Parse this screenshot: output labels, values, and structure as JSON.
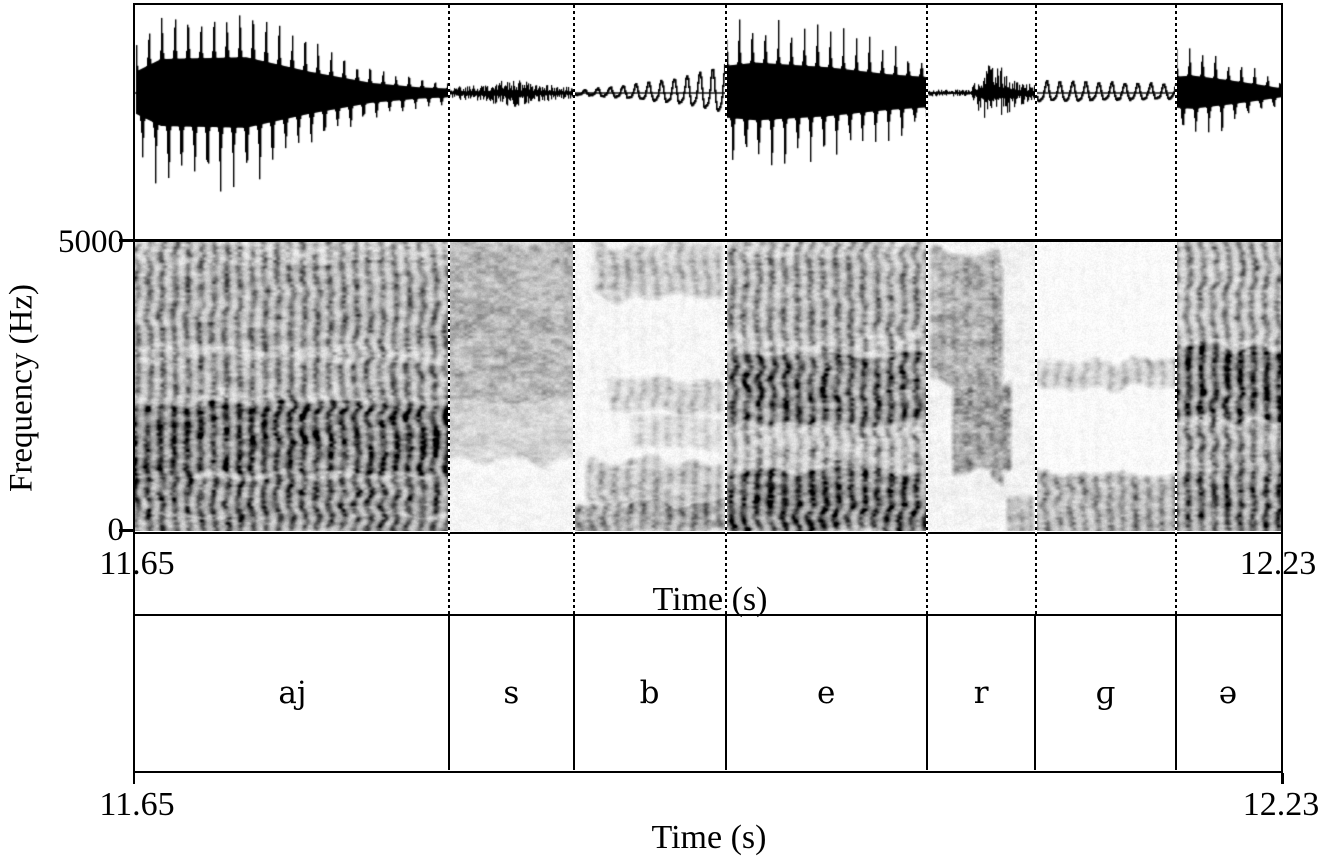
{
  "figure": {
    "freq_axis": {
      "title": "Frequency (Hz)",
      "max": "5000",
      "min": "0"
    },
    "upper_time_axis": {
      "left": "11.65",
      "right": "12.23",
      "title": "Time (s)"
    },
    "lower_time_axis": {
      "left": "11.65",
      "right": "12.23",
      "title": "Time (s)"
    }
  },
  "chart_data": {
    "type": "waveform+spectrogram+segmentation",
    "time_range_s": [
      11.65,
      12.23
    ],
    "frequency_range_hz": [
      0,
      5000
    ],
    "xlabel": "Time (s)",
    "ylabel": "Frequency (Hz)",
    "x_ticks": [
      "11.65",
      "12.23"
    ],
    "y_ticks": [
      "0",
      "5000"
    ],
    "grid": false,
    "panels": [
      "oscillogram",
      "grayscale spectrogram",
      "phone segmentation tier"
    ],
    "segmentation_tier": [
      {
        "label": "aj",
        "start_s": 11.65,
        "end_s": 11.809,
        "waveform": {
          "type": "pulses",
          "period": 13,
          "body": 0.42,
          "amp": 1.0,
          "asym": 1.08,
          "env": [
            [
              0,
              0.6
            ],
            [
              0.08,
              0.95
            ],
            [
              0.35,
              1.0
            ],
            [
              0.55,
              0.6
            ],
            [
              0.75,
              0.28
            ],
            [
              0.9,
              0.16
            ],
            [
              1,
              0.12
            ]
          ]
        },
        "spectrogram": {
          "base": 0.42,
          "striation": 0.5,
          "bands": [
            [
              0,
              260,
              0.72
            ],
            [
              300,
              900,
              0.75
            ],
            [
              1050,
              2200,
              0.9
            ],
            [
              2400,
              2950,
              0.55
            ],
            [
              3250,
              4650,
              0.55
            ],
            [
              0,
              5000,
              0.4,
              [
                0.8,
                0.85
              ]
            ]
          ]
        }
      },
      {
        "label": "s",
        "start_s": 11.809,
        "end_s": 11.872,
        "waveform": {
          "type": "noise",
          "amp": 1.0,
          "env": [
            [
              0,
              0.07
            ],
            [
              0.3,
              0.11
            ],
            [
              0.5,
              0.17
            ],
            [
              0.7,
              0.11
            ],
            [
              1,
              0.07
            ]
          ]
        },
        "spectrogram": {
          "base": 0.06,
          "striation": 0.0,
          "bands": [
            [
              2300,
              5000,
              0.42
            ],
            [
              1250,
              2300,
              0.25
            ]
          ]
        }
      },
      {
        "label": "b",
        "start_s": 11.872,
        "end_s": 11.949,
        "waveform": {
          "type": "sine",
          "period": 12.8,
          "amp": 1.0,
          "env": [
            [
              0,
              0.02
            ],
            [
              0.35,
              0.07
            ],
            [
              0.7,
              0.14
            ],
            [
              1,
              0.27
            ]
          ]
        },
        "spectrogram": {
          "base": 0.05,
          "striation": 0.35,
          "bands": [
            [
              4100,
              4900,
              0.33,
              [
                0.1,
                1
              ]
            ],
            [
              2150,
              2600,
              0.28,
              [
                0.2,
                1
              ]
            ],
            [
              1450,
              1900,
              0.22,
              [
                0.35,
                1
              ]
            ],
            [
              500,
              1150,
              0.36,
              [
                0.05,
                1
              ]
            ],
            [
              0,
              430,
              0.55
            ]
          ]
        }
      },
      {
        "label": "e",
        "start_s": 11.949,
        "end_s": 12.051,
        "waveform": {
          "type": "pulses",
          "period": 13,
          "body": 0.42,
          "amp": 0.85,
          "asym": 1.0,
          "env": [
            [
              0,
              0.9
            ],
            [
              0.15,
              1.0
            ],
            [
              0.5,
              0.85
            ],
            [
              0.8,
              0.62
            ],
            [
              1,
              0.52
            ]
          ]
        },
        "spectrogram": {
          "base": 0.38,
          "striation": 0.5,
          "bands": [
            [
              0,
              1000,
              0.87
            ],
            [
              1100,
              1700,
              0.38
            ],
            [
              1900,
              3000,
              0.8
            ],
            [
              3400,
              4800,
              0.52
            ],
            [
              0,
              5000,
              0.5,
              [
                0,
                0.07
              ]
            ]
          ]
        }
      },
      {
        "label": "r",
        "start_s": 12.051,
        "end_s": 12.106,
        "waveform": {
          "type": "noise",
          "amp": 1.0,
          "env": [
            [
              0,
              0.04
            ],
            [
              0.4,
              0.04
            ],
            [
              0.52,
              0.35
            ],
            [
              0.68,
              0.3
            ],
            [
              0.85,
              0.15
            ],
            [
              1,
              0.1
            ]
          ]
        },
        "spectrogram": {
          "base": 0.07,
          "striation": 0.15,
          "bands": [
            [
              2600,
              4800,
              0.45,
              [
                0,
                0.7
              ]
            ],
            [
              1100,
              2500,
              0.55,
              [
                0.2,
                0.8
              ]
            ],
            [
              900,
              4600,
              0.55,
              [
                0.55,
                0.72
              ]
            ],
            [
              0,
              600,
              0.4,
              [
                0.7,
                1
              ]
            ]
          ]
        }
      },
      {
        "label": "ɡ",
        "start_s": 12.106,
        "end_s": 12.177,
        "waveform": {
          "type": "sine",
          "period": 13,
          "amp": 1.0,
          "env": [
            [
              0,
              0.11
            ],
            [
              0.45,
              0.1
            ],
            [
              1,
              0.08
            ]
          ]
        },
        "spectrogram": {
          "base": 0.03,
          "striation": 0.4,
          "bands": [
            [
              2550,
              2900,
              0.3
            ],
            [
              0,
              950,
              0.5
            ]
          ]
        }
      },
      {
        "label": "ə",
        "start_s": 12.177,
        "end_s": 12.23,
        "waveform": {
          "type": "pulses",
          "period": 13,
          "body": 0.38,
          "amp": 0.72,
          "asym": 1.0,
          "env": [
            [
              0,
              0.7
            ],
            [
              0.15,
              0.75
            ],
            [
              0.5,
              0.55
            ],
            [
              0.8,
              0.35
            ],
            [
              1,
              0.2
            ]
          ]
        },
        "spectrogram": {
          "base": 0.4,
          "striation": 0.55,
          "bands": [
            [
              2000,
              3150,
              0.85
            ],
            [
              1050,
              1750,
              0.55
            ],
            [
              0,
              1000,
              0.75
            ],
            [
              3300,
              5000,
              0.48
            ],
            [
              0,
              5000,
              0.45,
              [
                0,
                0.08
              ]
            ]
          ]
        }
      }
    ]
  }
}
